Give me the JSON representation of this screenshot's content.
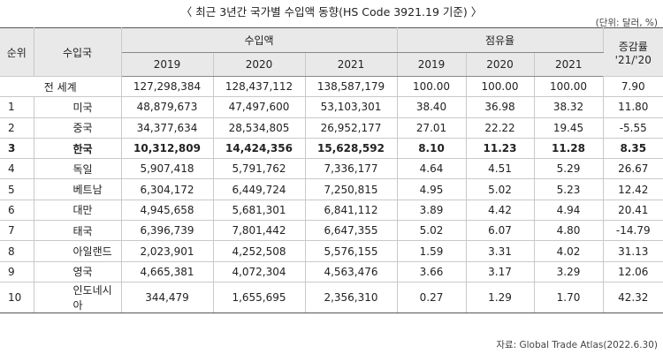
{
  "title": "〈 최근 3년간 국가별 수입액 동향(HS Code 3921.19 기준) 〉",
  "unit": "(단위: 달러, %)",
  "headers": {
    "rank": "순위",
    "country": "수입국",
    "import_amount": "수입액",
    "share": "점유율",
    "change_line1": "증감률",
    "change_line2": "'21/'20",
    "years": [
      "2019",
      "2020",
      "2021"
    ]
  },
  "rows": [
    {
      "rank": "",
      "country": "전 세계",
      "a2019": "127,298,384",
      "a2020": "128,437,112",
      "a2021": "138,587,179",
      "s2019": "100.00",
      "s2020": "100.00",
      "s2021": "100.00",
      "change": "7.90"
    },
    {
      "rank": "1",
      "country": "미국",
      "a2019": "48,879,673",
      "a2020": "47,497,600",
      "a2021": "53,103,301",
      "s2019": "38.40",
      "s2020": "36.98",
      "s2021": "38.32",
      "change": "11.80"
    },
    {
      "rank": "2",
      "country": "중국",
      "a2019": "34,377,634",
      "a2020": "28,534,805",
      "a2021": "26,952,177",
      "s2019": "27.01",
      "s2020": "22.22",
      "s2021": "19.45",
      "change": "-5.55"
    },
    {
      "rank": "3",
      "country": "한국",
      "a2019": "10,312,809",
      "a2020": "14,424,356",
      "a2021": "15,628,592",
      "s2019": "8.10",
      "s2020": "11.23",
      "s2021": "11.28",
      "change": "8.35"
    },
    {
      "rank": "4",
      "country": "독일",
      "a2019": "5,907,418",
      "a2020": "5,791,762",
      "a2021": "7,336,177",
      "s2019": "4.64",
      "s2020": "4.51",
      "s2021": "5.29",
      "change": "26.67"
    },
    {
      "rank": "5",
      "country": "베트남",
      "a2019": "6,304,172",
      "a2020": "6,449,724",
      "a2021": "7,250,815",
      "s2019": "4.95",
      "s2020": "5.02",
      "s2021": "5.23",
      "change": "12.42"
    },
    {
      "rank": "6",
      "country": "대만",
      "a2019": "4,945,658",
      "a2020": "5,681,301",
      "a2021": "6,841,112",
      "s2019": "3.89",
      "s2020": "4.42",
      "s2021": "4.94",
      "change": "20.41"
    },
    {
      "rank": "7",
      "country": "태국",
      "a2019": "6,396,739",
      "a2020": "7,801,442",
      "a2021": "6,647,355",
      "s2019": "5.02",
      "s2020": "6.07",
      "s2021": "4.80",
      "change": "-14.79"
    },
    {
      "rank": "8",
      "country": "아일랜드",
      "a2019": "2,023,901",
      "a2020": "4,252,508",
      "a2021": "5,576,155",
      "s2019": "1.59",
      "s2020": "3.31",
      "s2021": "4.02",
      "change": "31.13"
    },
    {
      "rank": "9",
      "country": "영국",
      "a2019": "4,665,381",
      "a2020": "4,072,304",
      "a2021": "4,563,476",
      "s2019": "3.66",
      "s2020": "3.17",
      "s2021": "3.29",
      "change": "12.06"
    },
    {
      "rank": "10",
      "country": "인도네시아",
      "a2019": "344,479",
      "a2020": "1,655,695",
      "a2021": "2,356,310",
      "s2019": "0.27",
      "s2020": "1.29",
      "s2021": "1.70",
      "change": "42.32"
    }
  ],
  "source": "자료: Global Trade Atlas(2022.6.30)"
}
